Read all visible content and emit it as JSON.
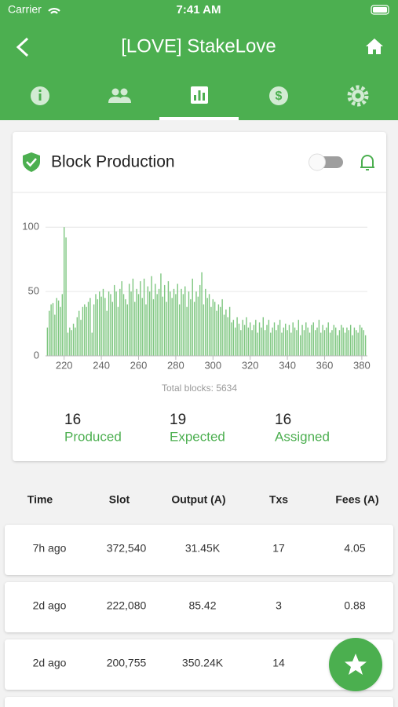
{
  "status_bar": {
    "carrier": "Carrier",
    "time": "7:41 AM"
  },
  "header": {
    "title": "[LOVE] StakeLove"
  },
  "card": {
    "title": "Block Production",
    "total_label": "Total blocks: 5634",
    "stats": [
      {
        "value": 16,
        "label": "Produced"
      },
      {
        "value": 19,
        "label": "Expected"
      },
      {
        "value": 16,
        "label": "Assigned"
      }
    ]
  },
  "chart_data": {
    "type": "bar",
    "color": "#7dc67f",
    "grid": true,
    "xlim": [
      210,
      383
    ],
    "xticks": [
      220,
      240,
      260,
      280,
      300,
      320,
      340,
      360,
      380
    ],
    "ylim": [
      0,
      105
    ],
    "yticks": [
      0,
      50,
      100
    ],
    "x": [
      211,
      212,
      213,
      214,
      215,
      216,
      217,
      218,
      219,
      220,
      221,
      222,
      223,
      224,
      225,
      226,
      227,
      228,
      229,
      230,
      231,
      232,
      233,
      234,
      235,
      236,
      237,
      238,
      239,
      240,
      241,
      242,
      243,
      244,
      245,
      246,
      247,
      248,
      249,
      250,
      251,
      252,
      253,
      254,
      255,
      256,
      257,
      258,
      259,
      260,
      261,
      262,
      263,
      264,
      265,
      266,
      267,
      268,
      269,
      270,
      271,
      272,
      273,
      274,
      275,
      276,
      277,
      278,
      279,
      280,
      281,
      282,
      283,
      284,
      285,
      286,
      287,
      288,
      289,
      290,
      291,
      292,
      293,
      294,
      295,
      296,
      297,
      298,
      299,
      300,
      301,
      302,
      303,
      304,
      305,
      306,
      307,
      308,
      309,
      310,
      311,
      312,
      313,
      314,
      315,
      316,
      317,
      318,
      319,
      320,
      321,
      322,
      323,
      324,
      325,
      326,
      327,
      328,
      329,
      330,
      331,
      332,
      333,
      334,
      335,
      336,
      337,
      338,
      339,
      340,
      341,
      342,
      343,
      344,
      345,
      346,
      347,
      348,
      349,
      350,
      351,
      352,
      353,
      354,
      355,
      356,
      357,
      358,
      359,
      360,
      361,
      362,
      363,
      364,
      365,
      366,
      367,
      368,
      369,
      370,
      371,
      372,
      373,
      374,
      375,
      376,
      377,
      378,
      379,
      380,
      381,
      382
    ],
    "values": [
      22,
      35,
      40,
      41,
      32,
      45,
      43,
      38,
      48,
      100,
      92,
      18,
      22,
      20,
      25,
      22,
      30,
      35,
      28,
      38,
      40,
      38,
      42,
      45,
      18,
      40,
      48,
      44,
      50,
      46,
      52,
      45,
      35,
      50,
      48,
      42,
      55,
      50,
      38,
      52,
      58,
      48,
      44,
      40,
      56,
      50,
      60,
      42,
      52,
      48,
      58,
      45,
      60,
      40,
      54,
      50,
      62,
      44,
      56,
      48,
      52,
      64,
      46,
      55,
      42,
      58,
      50,
      45,
      52,
      48,
      56,
      40,
      52,
      48,
      54,
      38,
      50,
      44,
      60,
      42,
      50,
      46,
      55,
      65,
      40,
      52,
      45,
      48,
      38,
      44,
      42,
      35,
      40,
      38,
      44,
      32,
      36,
      30,
      38,
      26,
      28,
      22,
      30,
      25,
      20,
      28,
      24,
      30,
      22,
      26,
      20,
      24,
      28,
      18,
      26,
      22,
      30,
      20,
      24,
      28,
      18,
      22,
      26,
      20,
      24,
      28,
      18,
      22,
      25,
      20,
      24,
      18,
      26,
      22,
      20,
      28,
      16,
      24,
      20,
      26,
      22,
      18,
      24,
      26,
      20,
      22,
      28,
      18,
      24,
      20,
      22,
      26,
      18,
      20,
      24,
      22,
      16,
      20,
      24,
      22,
      18,
      22,
      20,
      24,
      16,
      22,
      20,
      18,
      24,
      22,
      20,
      16
    ]
  },
  "table": {
    "columns": [
      "Time",
      "Slot",
      "Output (A)",
      "Txs",
      "Fees (A)"
    ],
    "rows": [
      [
        "7h ago",
        "372,540",
        "31.45K",
        "17",
        "4.05"
      ],
      [
        "2d ago",
        "222,080",
        "85.42",
        "3",
        "0.88"
      ],
      [
        "2d ago",
        "200,755",
        "350.24K",
        "14",
        ""
      ]
    ]
  }
}
